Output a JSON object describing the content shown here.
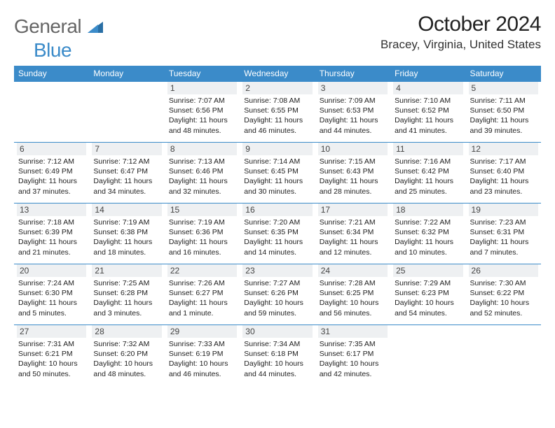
{
  "logo": {
    "general": "General",
    "blue": "Blue"
  },
  "header": {
    "month": "October 2024",
    "location": "Bracey, Virginia, United States"
  },
  "weekdays": [
    "Sunday",
    "Monday",
    "Tuesday",
    "Wednesday",
    "Thursday",
    "Friday",
    "Saturday"
  ],
  "colors": {
    "header_blue": "#3b8bc9",
    "stripe": "#eef0f2",
    "border": "#3b8bc9"
  },
  "weeks": [
    [
      {
        "empty": true
      },
      {
        "empty": true
      },
      {
        "day": "1",
        "sunrise": "Sunrise: 7:07 AM",
        "sunset": "Sunset: 6:56 PM",
        "daylight": "Daylight: 11 hours and 48 minutes."
      },
      {
        "day": "2",
        "sunrise": "Sunrise: 7:08 AM",
        "sunset": "Sunset: 6:55 PM",
        "daylight": "Daylight: 11 hours and 46 minutes."
      },
      {
        "day": "3",
        "sunrise": "Sunrise: 7:09 AM",
        "sunset": "Sunset: 6:53 PM",
        "daylight": "Daylight: 11 hours and 44 minutes."
      },
      {
        "day": "4",
        "sunrise": "Sunrise: 7:10 AM",
        "sunset": "Sunset: 6:52 PM",
        "daylight": "Daylight: 11 hours and 41 minutes."
      },
      {
        "day": "5",
        "sunrise": "Sunrise: 7:11 AM",
        "sunset": "Sunset: 6:50 PM",
        "daylight": "Daylight: 11 hours and 39 minutes."
      }
    ],
    [
      {
        "day": "6",
        "sunrise": "Sunrise: 7:12 AM",
        "sunset": "Sunset: 6:49 PM",
        "daylight": "Daylight: 11 hours and 37 minutes."
      },
      {
        "day": "7",
        "sunrise": "Sunrise: 7:12 AM",
        "sunset": "Sunset: 6:47 PM",
        "daylight": "Daylight: 11 hours and 34 minutes."
      },
      {
        "day": "8",
        "sunrise": "Sunrise: 7:13 AM",
        "sunset": "Sunset: 6:46 PM",
        "daylight": "Daylight: 11 hours and 32 minutes."
      },
      {
        "day": "9",
        "sunrise": "Sunrise: 7:14 AM",
        "sunset": "Sunset: 6:45 PM",
        "daylight": "Daylight: 11 hours and 30 minutes."
      },
      {
        "day": "10",
        "sunrise": "Sunrise: 7:15 AM",
        "sunset": "Sunset: 6:43 PM",
        "daylight": "Daylight: 11 hours and 28 minutes."
      },
      {
        "day": "11",
        "sunrise": "Sunrise: 7:16 AM",
        "sunset": "Sunset: 6:42 PM",
        "daylight": "Daylight: 11 hours and 25 minutes."
      },
      {
        "day": "12",
        "sunrise": "Sunrise: 7:17 AM",
        "sunset": "Sunset: 6:40 PM",
        "daylight": "Daylight: 11 hours and 23 minutes."
      }
    ],
    [
      {
        "day": "13",
        "sunrise": "Sunrise: 7:18 AM",
        "sunset": "Sunset: 6:39 PM",
        "daylight": "Daylight: 11 hours and 21 minutes."
      },
      {
        "day": "14",
        "sunrise": "Sunrise: 7:19 AM",
        "sunset": "Sunset: 6:38 PM",
        "daylight": "Daylight: 11 hours and 18 minutes."
      },
      {
        "day": "15",
        "sunrise": "Sunrise: 7:19 AM",
        "sunset": "Sunset: 6:36 PM",
        "daylight": "Daylight: 11 hours and 16 minutes."
      },
      {
        "day": "16",
        "sunrise": "Sunrise: 7:20 AM",
        "sunset": "Sunset: 6:35 PM",
        "daylight": "Daylight: 11 hours and 14 minutes."
      },
      {
        "day": "17",
        "sunrise": "Sunrise: 7:21 AM",
        "sunset": "Sunset: 6:34 PM",
        "daylight": "Daylight: 11 hours and 12 minutes."
      },
      {
        "day": "18",
        "sunrise": "Sunrise: 7:22 AM",
        "sunset": "Sunset: 6:32 PM",
        "daylight": "Daylight: 11 hours and 10 minutes."
      },
      {
        "day": "19",
        "sunrise": "Sunrise: 7:23 AM",
        "sunset": "Sunset: 6:31 PM",
        "daylight": "Daylight: 11 hours and 7 minutes."
      }
    ],
    [
      {
        "day": "20",
        "sunrise": "Sunrise: 7:24 AM",
        "sunset": "Sunset: 6:30 PM",
        "daylight": "Daylight: 11 hours and 5 minutes."
      },
      {
        "day": "21",
        "sunrise": "Sunrise: 7:25 AM",
        "sunset": "Sunset: 6:28 PM",
        "daylight": "Daylight: 11 hours and 3 minutes."
      },
      {
        "day": "22",
        "sunrise": "Sunrise: 7:26 AM",
        "sunset": "Sunset: 6:27 PM",
        "daylight": "Daylight: 11 hours and 1 minute."
      },
      {
        "day": "23",
        "sunrise": "Sunrise: 7:27 AM",
        "sunset": "Sunset: 6:26 PM",
        "daylight": "Daylight: 10 hours and 59 minutes."
      },
      {
        "day": "24",
        "sunrise": "Sunrise: 7:28 AM",
        "sunset": "Sunset: 6:25 PM",
        "daylight": "Daylight: 10 hours and 56 minutes."
      },
      {
        "day": "25",
        "sunrise": "Sunrise: 7:29 AM",
        "sunset": "Sunset: 6:23 PM",
        "daylight": "Daylight: 10 hours and 54 minutes."
      },
      {
        "day": "26",
        "sunrise": "Sunrise: 7:30 AM",
        "sunset": "Sunset: 6:22 PM",
        "daylight": "Daylight: 10 hours and 52 minutes."
      }
    ],
    [
      {
        "day": "27",
        "sunrise": "Sunrise: 7:31 AM",
        "sunset": "Sunset: 6:21 PM",
        "daylight": "Daylight: 10 hours and 50 minutes."
      },
      {
        "day": "28",
        "sunrise": "Sunrise: 7:32 AM",
        "sunset": "Sunset: 6:20 PM",
        "daylight": "Daylight: 10 hours and 48 minutes."
      },
      {
        "day": "29",
        "sunrise": "Sunrise: 7:33 AM",
        "sunset": "Sunset: 6:19 PM",
        "daylight": "Daylight: 10 hours and 46 minutes."
      },
      {
        "day": "30",
        "sunrise": "Sunrise: 7:34 AM",
        "sunset": "Sunset: 6:18 PM",
        "daylight": "Daylight: 10 hours and 44 minutes."
      },
      {
        "day": "31",
        "sunrise": "Sunrise: 7:35 AM",
        "sunset": "Sunset: 6:17 PM",
        "daylight": "Daylight: 10 hours and 42 minutes."
      },
      {
        "empty": true
      },
      {
        "empty": true
      }
    ]
  ]
}
